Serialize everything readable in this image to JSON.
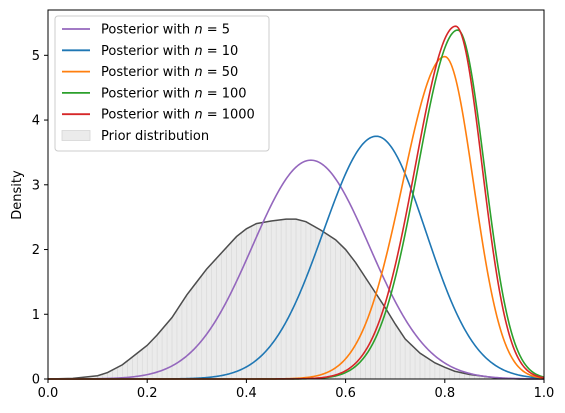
{
  "chart_data": {
    "type": "line",
    "title": "",
    "xlabel": "",
    "ylabel": "Density",
    "xlim": [
      0.0,
      1.0
    ],
    "ylim": [
      0,
      5.7
    ],
    "xticks": [
      "0.0",
      "0.2",
      "0.4",
      "0.6",
      "0.8",
      "1.0"
    ],
    "yticks": [
      "0",
      "1",
      "2",
      "3",
      "4",
      "5"
    ],
    "grid": false,
    "legend_position": "top-left",
    "series": [
      {
        "name": "Posterior with $n = 5$",
        "legend_prefix": "Posterior with ",
        "legend_var": "n",
        "legend_eq": " = 5",
        "color": "#9467bd",
        "mode": 0.53,
        "peak": 3.38,
        "sd_left": 0.118,
        "sd_right": 0.118
      },
      {
        "name": "Posterior with $n = 10$",
        "legend_prefix": "Posterior with ",
        "legend_var": "n",
        "legend_eq": " = 10",
        "color": "#1f77b4",
        "mode": 0.662,
        "peak": 3.75,
        "sd_left": 0.107,
        "sd_right": 0.1
      },
      {
        "name": "Posterior with $n = 50$",
        "legend_prefix": "Posterior with ",
        "legend_var": "n",
        "legend_eq": " = 50",
        "color": "#ff7f0e",
        "mode": 0.8,
        "peak": 4.98,
        "sd_left": 0.085,
        "sd_right": 0.058
      },
      {
        "name": "Posterior with $n = 100$",
        "legend_prefix": "Posterior with ",
        "legend_var": "n",
        "legend_eq": " = 100",
        "color": "#2ca02c",
        "mode": 0.826,
        "peak": 5.39,
        "sd_left": 0.08,
        "sd_right": 0.054
      },
      {
        "name": "Posterior with $n = 1000$",
        "legend_prefix": "Posterior with ",
        "legend_var": "n",
        "legend_eq": " = 1000",
        "color": "#d62728",
        "mode": 0.822,
        "peak": 5.45,
        "sd_left": 0.081,
        "sd_right": 0.053
      }
    ],
    "prior": {
      "name": "Prior distribution",
      "fill_color": "#ebebeb",
      "line_color": "#4d4d4d",
      "x": [
        0.0,
        0.05,
        0.1,
        0.12,
        0.15,
        0.18,
        0.2,
        0.22,
        0.25,
        0.28,
        0.3,
        0.32,
        0.35,
        0.38,
        0.4,
        0.42,
        0.45,
        0.48,
        0.5,
        0.52,
        0.55,
        0.58,
        0.6,
        0.62,
        0.65,
        0.68,
        0.7,
        0.72,
        0.75,
        0.78,
        0.8,
        0.82,
        0.85,
        0.88,
        0.9,
        0.92,
        0.95,
        1.0
      ],
      "y": [
        0.0,
        0.01,
        0.05,
        0.1,
        0.22,
        0.4,
        0.52,
        0.68,
        0.95,
        1.3,
        1.5,
        1.7,
        1.95,
        2.2,
        2.32,
        2.4,
        2.44,
        2.47,
        2.47,
        2.43,
        2.3,
        2.15,
        2.0,
        1.8,
        1.45,
        1.1,
        0.85,
        0.62,
        0.4,
        0.25,
        0.18,
        0.12,
        0.07,
        0.04,
        0.02,
        0.01,
        0.0,
        0.0
      ]
    }
  }
}
